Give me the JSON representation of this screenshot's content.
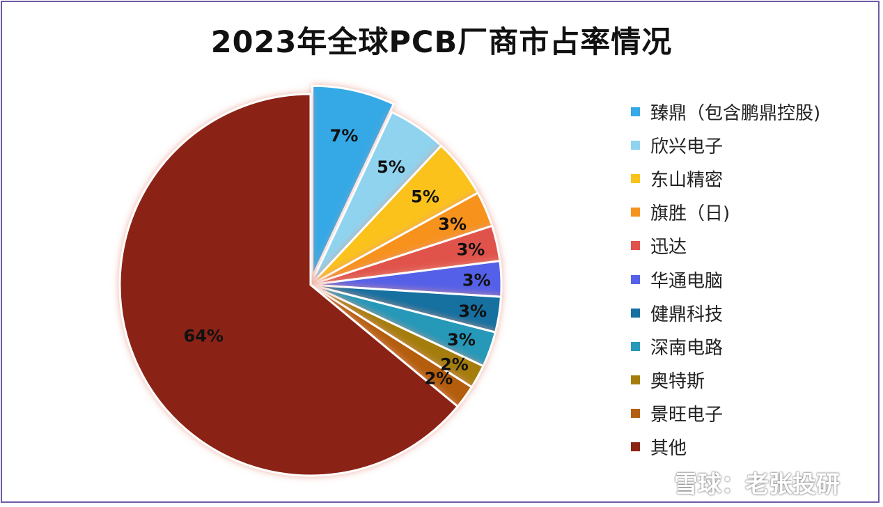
{
  "chart_data": {
    "type": "pie",
    "title": "2023年全球PCB厂商市占率情况",
    "legend_position": "right",
    "slices": [
      {
        "label": "臻鼎（包含鹏鼎控股)",
        "value": 7,
        "display": "7%",
        "color": "#36a9e6",
        "exploded": true
      },
      {
        "label": "欣兴电子",
        "value": 5,
        "display": "5%",
        "color": "#8fd3ef"
      },
      {
        "label": "东山精密",
        "value": 5,
        "display": "5%",
        "color": "#fbc21a"
      },
      {
        "label": "旗胜（日)",
        "value": 3,
        "display": "3%",
        "color": "#f7921e"
      },
      {
        "label": "迅达",
        "value": 3,
        "display": "3%",
        "color": "#e0524b"
      },
      {
        "label": "华通电脑",
        "value": 3,
        "display": "3%",
        "color": "#5561e8"
      },
      {
        "label": "健鼎科技",
        "value": 3,
        "display": "3%",
        "color": "#1670a0"
      },
      {
        "label": "深南电路",
        "value": 3,
        "display": "3%",
        "color": "#2798b8"
      },
      {
        "label": "奥特斯",
        "value": 2,
        "display": "2%",
        "color": "#a47d0c"
      },
      {
        "label": "景旺电子",
        "value": 2,
        "display": "2%",
        "color": "#b35d0e"
      },
      {
        "label": "其他",
        "value": 64,
        "display": "64%",
        "color": "#8b2413"
      }
    ]
  },
  "watermark": {
    "text": "雪球：老张投研",
    "icon": "xueqiu-logo-icon"
  }
}
